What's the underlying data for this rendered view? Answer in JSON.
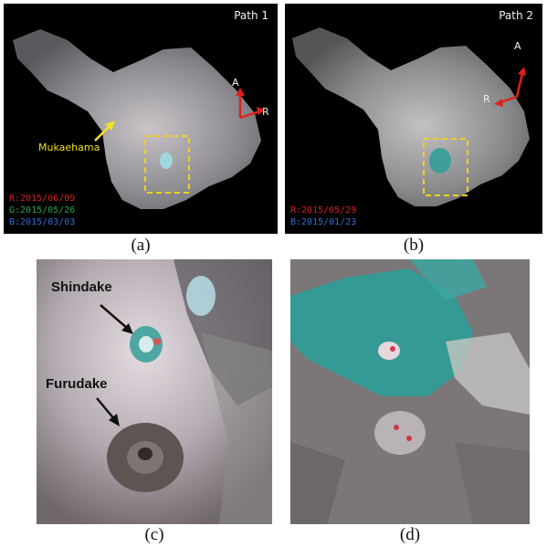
{
  "panels": {
    "a": {
      "caption": "(a)",
      "path_label": "Path 1",
      "mukaehama_label": "Mukaehama",
      "axis": {
        "azimuth": "A",
        "range": "R"
      },
      "legend": [
        "R:2015/06/09",
        "G:2015/05/26",
        "B:2015/03/03"
      ]
    },
    "b": {
      "caption": "(b)",
      "path_label": "Path 2",
      "axis": {
        "azimuth": "A",
        "range": "R"
      },
      "legend": [
        "R:2015/05/29",
        "B:2015/01/23"
      ]
    },
    "c": {
      "caption": "(c)",
      "labels": {
        "shindake": "Shindake",
        "furudake": "Furudake"
      }
    },
    "d": {
      "caption": "(d)"
    }
  },
  "colors": {
    "legend_red": "#d32020",
    "legend_green": "#2aa64b",
    "legend_blue": "#2f6fd6",
    "box_yellow": "#f0d21a",
    "arrow_red": "#e0201a",
    "cyan": "#2e9e98"
  }
}
